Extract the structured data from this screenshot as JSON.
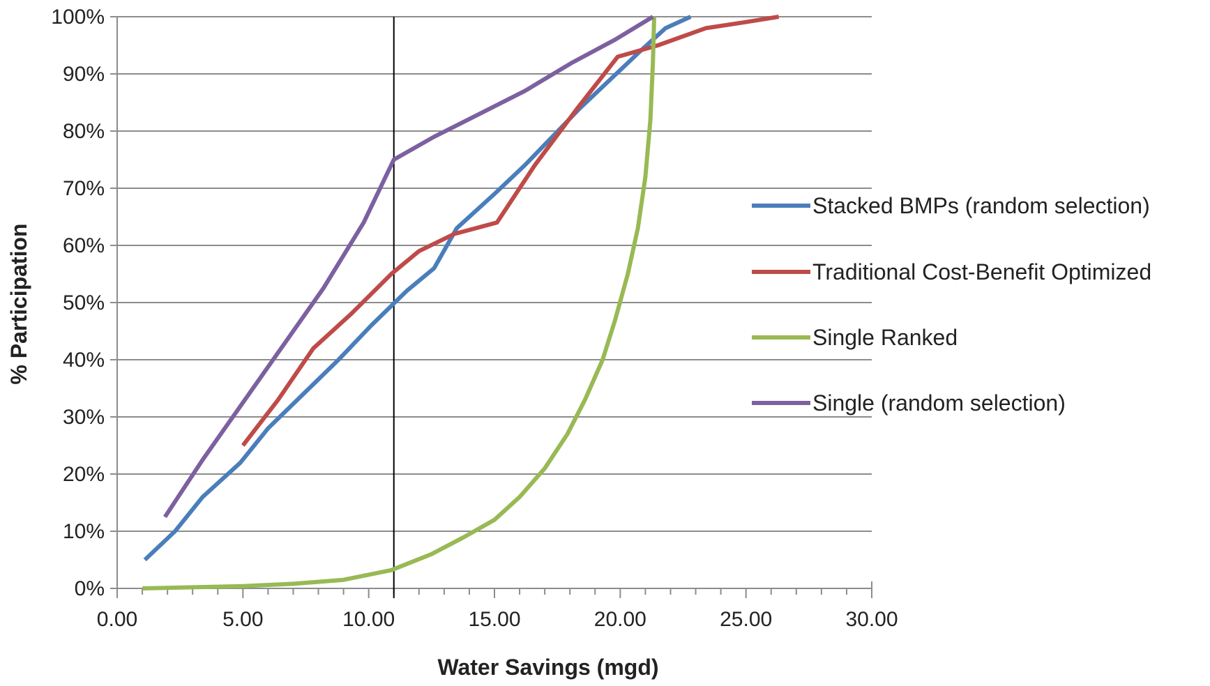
{
  "chart_data": {
    "type": "line",
    "title": "",
    "xlabel": "Water Savings (mgd)",
    "ylabel": "% Participation",
    "xlim": [
      0,
      30
    ],
    "ylim": [
      0,
      100
    ],
    "x_ticks": [
      "0.00",
      "5.00",
      "10.00",
      "15.00",
      "20.00",
      "25.00",
      "30.00"
    ],
    "y_ticks": [
      "0%",
      "10%",
      "20%",
      "30%",
      "40%",
      "50%",
      "60%",
      "70%",
      "80%",
      "90%",
      "100%"
    ],
    "grid": "horizontal",
    "legend_position": "right",
    "reference_line_x": 11.0,
    "series": [
      {
        "name": "Stacked BMPs (random selection)",
        "color": "#4a7ebb",
        "points": [
          [
            1.1,
            5
          ],
          [
            2.3,
            10
          ],
          [
            3.4,
            16
          ],
          [
            4.9,
            22
          ],
          [
            6.0,
            28
          ],
          [
            7.4,
            34
          ],
          [
            8.8,
            40
          ],
          [
            10.1,
            46
          ],
          [
            11.5,
            52
          ],
          [
            12.6,
            56
          ],
          [
            13.5,
            63
          ],
          [
            15.0,
            69
          ],
          [
            16.2,
            74
          ],
          [
            17.3,
            79
          ],
          [
            18.4,
            84
          ],
          [
            19.6,
            89
          ],
          [
            20.8,
            94
          ],
          [
            21.8,
            98
          ],
          [
            22.8,
            100
          ]
        ]
      },
      {
        "name": "Traditional Cost-Benefit Optimized",
        "color": "#be4b48",
        "points": [
          [
            5.0,
            25
          ],
          [
            6.4,
            33
          ],
          [
            7.8,
            42
          ],
          [
            9.3,
            48
          ],
          [
            10.9,
            55
          ],
          [
            12.0,
            59
          ],
          [
            13.4,
            62
          ],
          [
            15.1,
            64
          ],
          [
            16.6,
            74
          ],
          [
            18.3,
            84
          ],
          [
            19.9,
            93
          ],
          [
            21.5,
            95
          ],
          [
            23.4,
            98
          ],
          [
            24.9,
            99
          ],
          [
            26.3,
            100
          ]
        ]
      },
      {
        "name": "Single Ranked",
        "color": "#98b954",
        "points": [
          [
            1.0,
            0
          ],
          [
            3.0,
            0.2
          ],
          [
            5.0,
            0.4
          ],
          [
            7.0,
            0.8
          ],
          [
            9.0,
            1.5
          ],
          [
            10.9,
            3.2
          ],
          [
            12.5,
            6
          ],
          [
            13.8,
            9
          ],
          [
            15.0,
            12
          ],
          [
            16.0,
            16
          ],
          [
            17.0,
            21
          ],
          [
            17.9,
            27
          ],
          [
            18.6,
            33
          ],
          [
            19.3,
            40
          ],
          [
            19.8,
            47
          ],
          [
            20.3,
            55
          ],
          [
            20.7,
            63
          ],
          [
            21.0,
            72
          ],
          [
            21.2,
            82
          ],
          [
            21.3,
            92
          ],
          [
            21.35,
            100
          ]
        ]
      },
      {
        "name": "Single (random selection)",
        "color": "#7d60a0",
        "points": [
          [
            1.9,
            12.5
          ],
          [
            3.4,
            22.5
          ],
          [
            5.0,
            32.5
          ],
          [
            6.6,
            42.5
          ],
          [
            8.2,
            52.5
          ],
          [
            9.8,
            64
          ],
          [
            11.0,
            75
          ],
          [
            12.6,
            79
          ],
          [
            14.4,
            83
          ],
          [
            16.2,
            87
          ],
          [
            18.1,
            92
          ],
          [
            19.8,
            96
          ],
          [
            21.3,
            100
          ]
        ]
      }
    ]
  }
}
